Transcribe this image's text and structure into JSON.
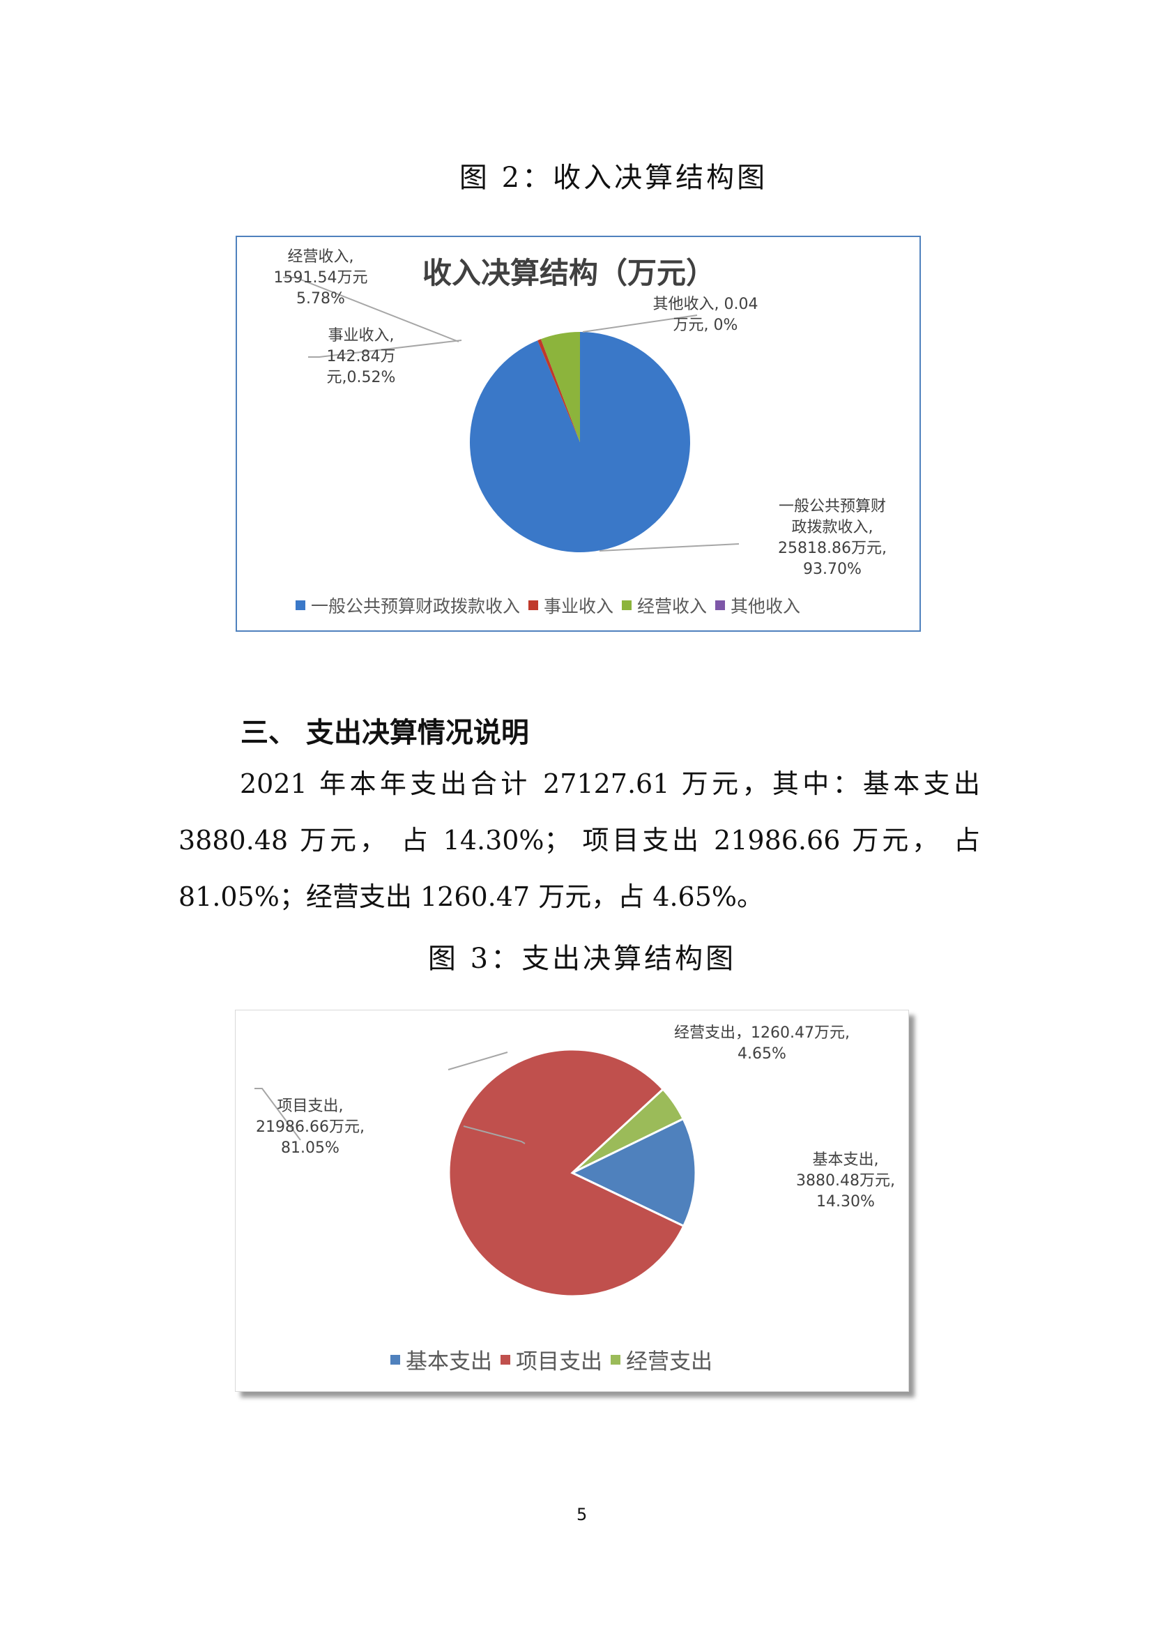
{
  "figure2": {
    "caption": "图 2：收入决算结构图",
    "chart_data": {
      "type": "pie",
      "title": "收入决算结构（万元）",
      "unit": "万元",
      "categories": [
        "一般公共预算财政拨款收入",
        "事业收入",
        "经营收入",
        "其他收入"
      ],
      "values": [
        25818.86,
        142.84,
        1591.54,
        0.04
      ],
      "percentages": [
        "93.70%",
        "0.52%",
        "5.78%",
        "0%"
      ],
      "colors": [
        "#3a78c8",
        "#c0392b",
        "#8cb43c",
        "#7e57a8"
      ],
      "legend": "bottom",
      "data_labels": {
        "general": [
          "一般公共预算财",
          "政拨款收入,",
          "25818.86万元,",
          "93.70%"
        ],
        "business": [
          "事业收入,",
          "142.84万",
          "元,0.52%"
        ],
        "operating": [
          "经营收入,",
          "1591.54万元",
          "5.78%"
        ],
        "other": [
          "其他收入, 0.04",
          "万元, 0%"
        ]
      }
    }
  },
  "section3": {
    "heading": "三、 支出决算情况说明",
    "paragraph_lines": [
      "2021 年本年支出合计 27127.61 万元，其中：基本支出",
      "3880.48 万元， 占 14.30%； 项目支出 21986.66 万元， 占",
      "81.05%；经营支出 1260.47 万元，占 4.65%。"
    ]
  },
  "figure3": {
    "caption": "图 3：支出决算结构图",
    "chart_data": {
      "type": "pie",
      "title": "",
      "unit": "万元",
      "categories": [
        "基本支出",
        "项目支出",
        "经营支出"
      ],
      "values": [
        3880.48,
        21986.66,
        1260.47
      ],
      "percentages": [
        "14.30%",
        "81.05%",
        "4.65%"
      ],
      "colors": [
        "#4f81bd",
        "#c0504d",
        "#9bbb59"
      ],
      "legend": "bottom",
      "data_labels": {
        "basic": [
          "基本支出,",
          "3880.48万元,",
          "14.30%"
        ],
        "project": [
          "项目支出,",
          "21986.66万元,",
          "81.05%"
        ],
        "operating": [
          "经营支出，1260.47万元,",
          "4.65%"
        ]
      }
    }
  },
  "page_number": "5"
}
